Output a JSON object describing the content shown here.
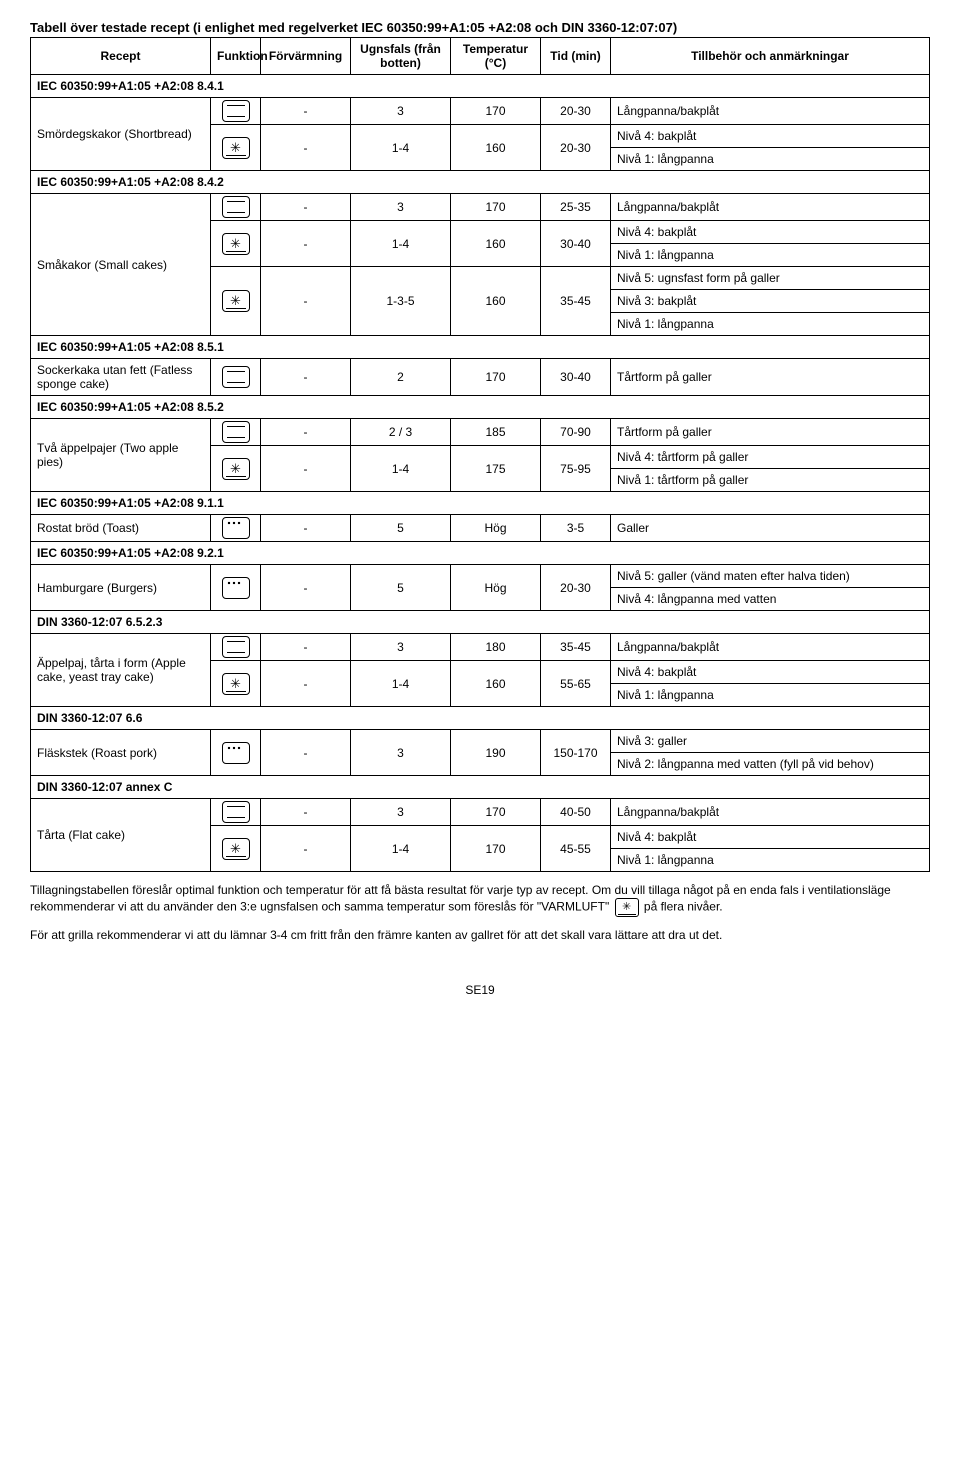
{
  "title": "Tabell över testade recept (i enlighet med regelverket IEC 60350:99+A1:05 +A2:08 och DIN 3360-12:07:07)",
  "headers": {
    "recipe": "Recept",
    "function": "Funktion",
    "preheat": "Förvärmning",
    "level": "Ugnsfals (från botten)",
    "temp": "Temperatur (°C)",
    "time": "Tid (min)",
    "accessories": "Tillbehör och anmärkningar"
  },
  "sections": [
    {
      "heading": "IEC 60350:99+A1:05 +A2:08 8.4.1",
      "recipe": "Smördegskakor (Shortbread)",
      "rows": [
        {
          "icon": "conv",
          "preheat": "-",
          "level": "3",
          "temp": "170",
          "time": "20-30",
          "acc": [
            "Långpanna/bakplåt"
          ]
        },
        {
          "icon": "fan",
          "preheat": "-",
          "level": "1-4",
          "temp": "160",
          "time": "20-30",
          "acc": [
            "Nivå 4: bakplåt",
            "Nivå 1: långpanna"
          ]
        }
      ]
    },
    {
      "heading": "IEC 60350:99+A1:05 +A2:08 8.4.2",
      "recipe": "Småkakor (Small cakes)",
      "rows": [
        {
          "icon": "conv",
          "preheat": "-",
          "level": "3",
          "temp": "170",
          "time": "25-35",
          "acc": [
            "Långpanna/bakplåt"
          ]
        },
        {
          "icon": "fan",
          "preheat": "-",
          "level": "1-4",
          "temp": "160",
          "time": "30-40",
          "acc": [
            "Nivå 4: bakplåt",
            "Nivå 1: långpanna"
          ]
        },
        {
          "icon": "fan",
          "preheat": "-",
          "level": "1-3-5",
          "temp": "160",
          "time": "35-45",
          "acc": [
            "Nivå 5: ugnsfast form på galler",
            "Nivå 3: bakplåt",
            "Nivå 1: långpanna"
          ]
        }
      ]
    },
    {
      "heading": "IEC 60350:99+A1:05 +A2:08 8.5.1",
      "recipe": "Sockerkaka utan fett (Fatless sponge cake)",
      "rows": [
        {
          "icon": "conv",
          "preheat": "-",
          "level": "2",
          "temp": "170",
          "time": "30-40",
          "acc": [
            "Tårtform på galler"
          ]
        }
      ]
    },
    {
      "heading": "IEC 60350:99+A1:05 +A2:08 8.5.2",
      "recipe": "Två äppelpajer (Two apple pies)",
      "rows": [
        {
          "icon": "conv",
          "preheat": "-",
          "level": "2 / 3",
          "temp": "185",
          "time": "70-90",
          "acc": [
            "Tårtform på galler"
          ]
        },
        {
          "icon": "fan",
          "preheat": "-",
          "level": "1-4",
          "temp": "175",
          "time": "75-95",
          "acc": [
            "Nivå 4: tårtform på galler",
            "Nivå 1: tårtform på galler"
          ]
        }
      ]
    },
    {
      "heading": "IEC 60350:99+A1:05 +A2:08 9.1.1",
      "recipe": "Rostat bröd (Toast)",
      "rows": [
        {
          "icon": "grill",
          "preheat": "-",
          "level": "5",
          "temp": "Hög",
          "time": "3-5",
          "acc": [
            "Galler"
          ]
        }
      ]
    },
    {
      "heading": "IEC 60350:99+A1:05 +A2:08 9.2.1",
      "recipe": "Hamburgare (Burgers)",
      "rows": [
        {
          "icon": "grill",
          "preheat": "-",
          "level": "5",
          "temp": "Hög",
          "time": "20-30",
          "acc": [
            "Nivå 5: galler (vänd maten efter halva tiden)",
            "Nivå 4: långpanna med vatten"
          ]
        }
      ]
    },
    {
      "heading": "DIN 3360-12:07 6.5.2.3",
      "recipe": "Äppelpaj, tårta i form (Apple cake, yeast tray cake)",
      "rows": [
        {
          "icon": "conv",
          "preheat": "-",
          "level": "3",
          "temp": "180",
          "time": "35-45",
          "acc": [
            "Långpanna/bakplåt"
          ]
        },
        {
          "icon": "fan",
          "preheat": "-",
          "level": "1-4",
          "temp": "160",
          "time": "55-65",
          "acc": [
            "Nivå 4: bakplåt",
            "Nivå 1: långpanna"
          ]
        }
      ]
    },
    {
      "heading": "DIN 3360-12:07 6.6",
      "recipe": "Fläskstek (Roast pork)",
      "rows": [
        {
          "icon": "grill",
          "preheat": "-",
          "level": "3",
          "temp": "190",
          "time": "150-170",
          "acc": [
            "Nivå 3: galler",
            "Nivå 2: långpanna med vatten (fyll på vid behov)"
          ]
        }
      ]
    },
    {
      "heading": "DIN 3360-12:07 annex C",
      "recipe": "Tårta (Flat cake)",
      "rows": [
        {
          "icon": "conv",
          "preheat": "-",
          "level": "3",
          "temp": "170",
          "time": "40-50",
          "acc": [
            "Långpanna/bakplåt"
          ]
        },
        {
          "icon": "fan",
          "preheat": "-",
          "level": "1-4",
          "temp": "170",
          "time": "45-55",
          "acc": [
            "Nivå 4: bakplåt",
            "Nivå 1: långpanna"
          ]
        }
      ]
    }
  ],
  "footer": {
    "p1a": "Tillagningstabellen föreslår optimal funktion och temperatur för att få bästa resultat för varje typ av recept. Om du vill tillaga något på en enda fals i ventilationsläge rekommenderar vi att du använder den 3:e ugnsfalsen och samma temperatur som föreslås för \"VARMLUFT\" ",
    "p1b": " på flera nivåer.",
    "p2": "För att grilla rekommenderar vi att du lämnar 3-4 cm fritt från den främre kanten av gallret för att det skall vara lättare att dra ut det."
  },
  "pageNumber": "SE19"
}
